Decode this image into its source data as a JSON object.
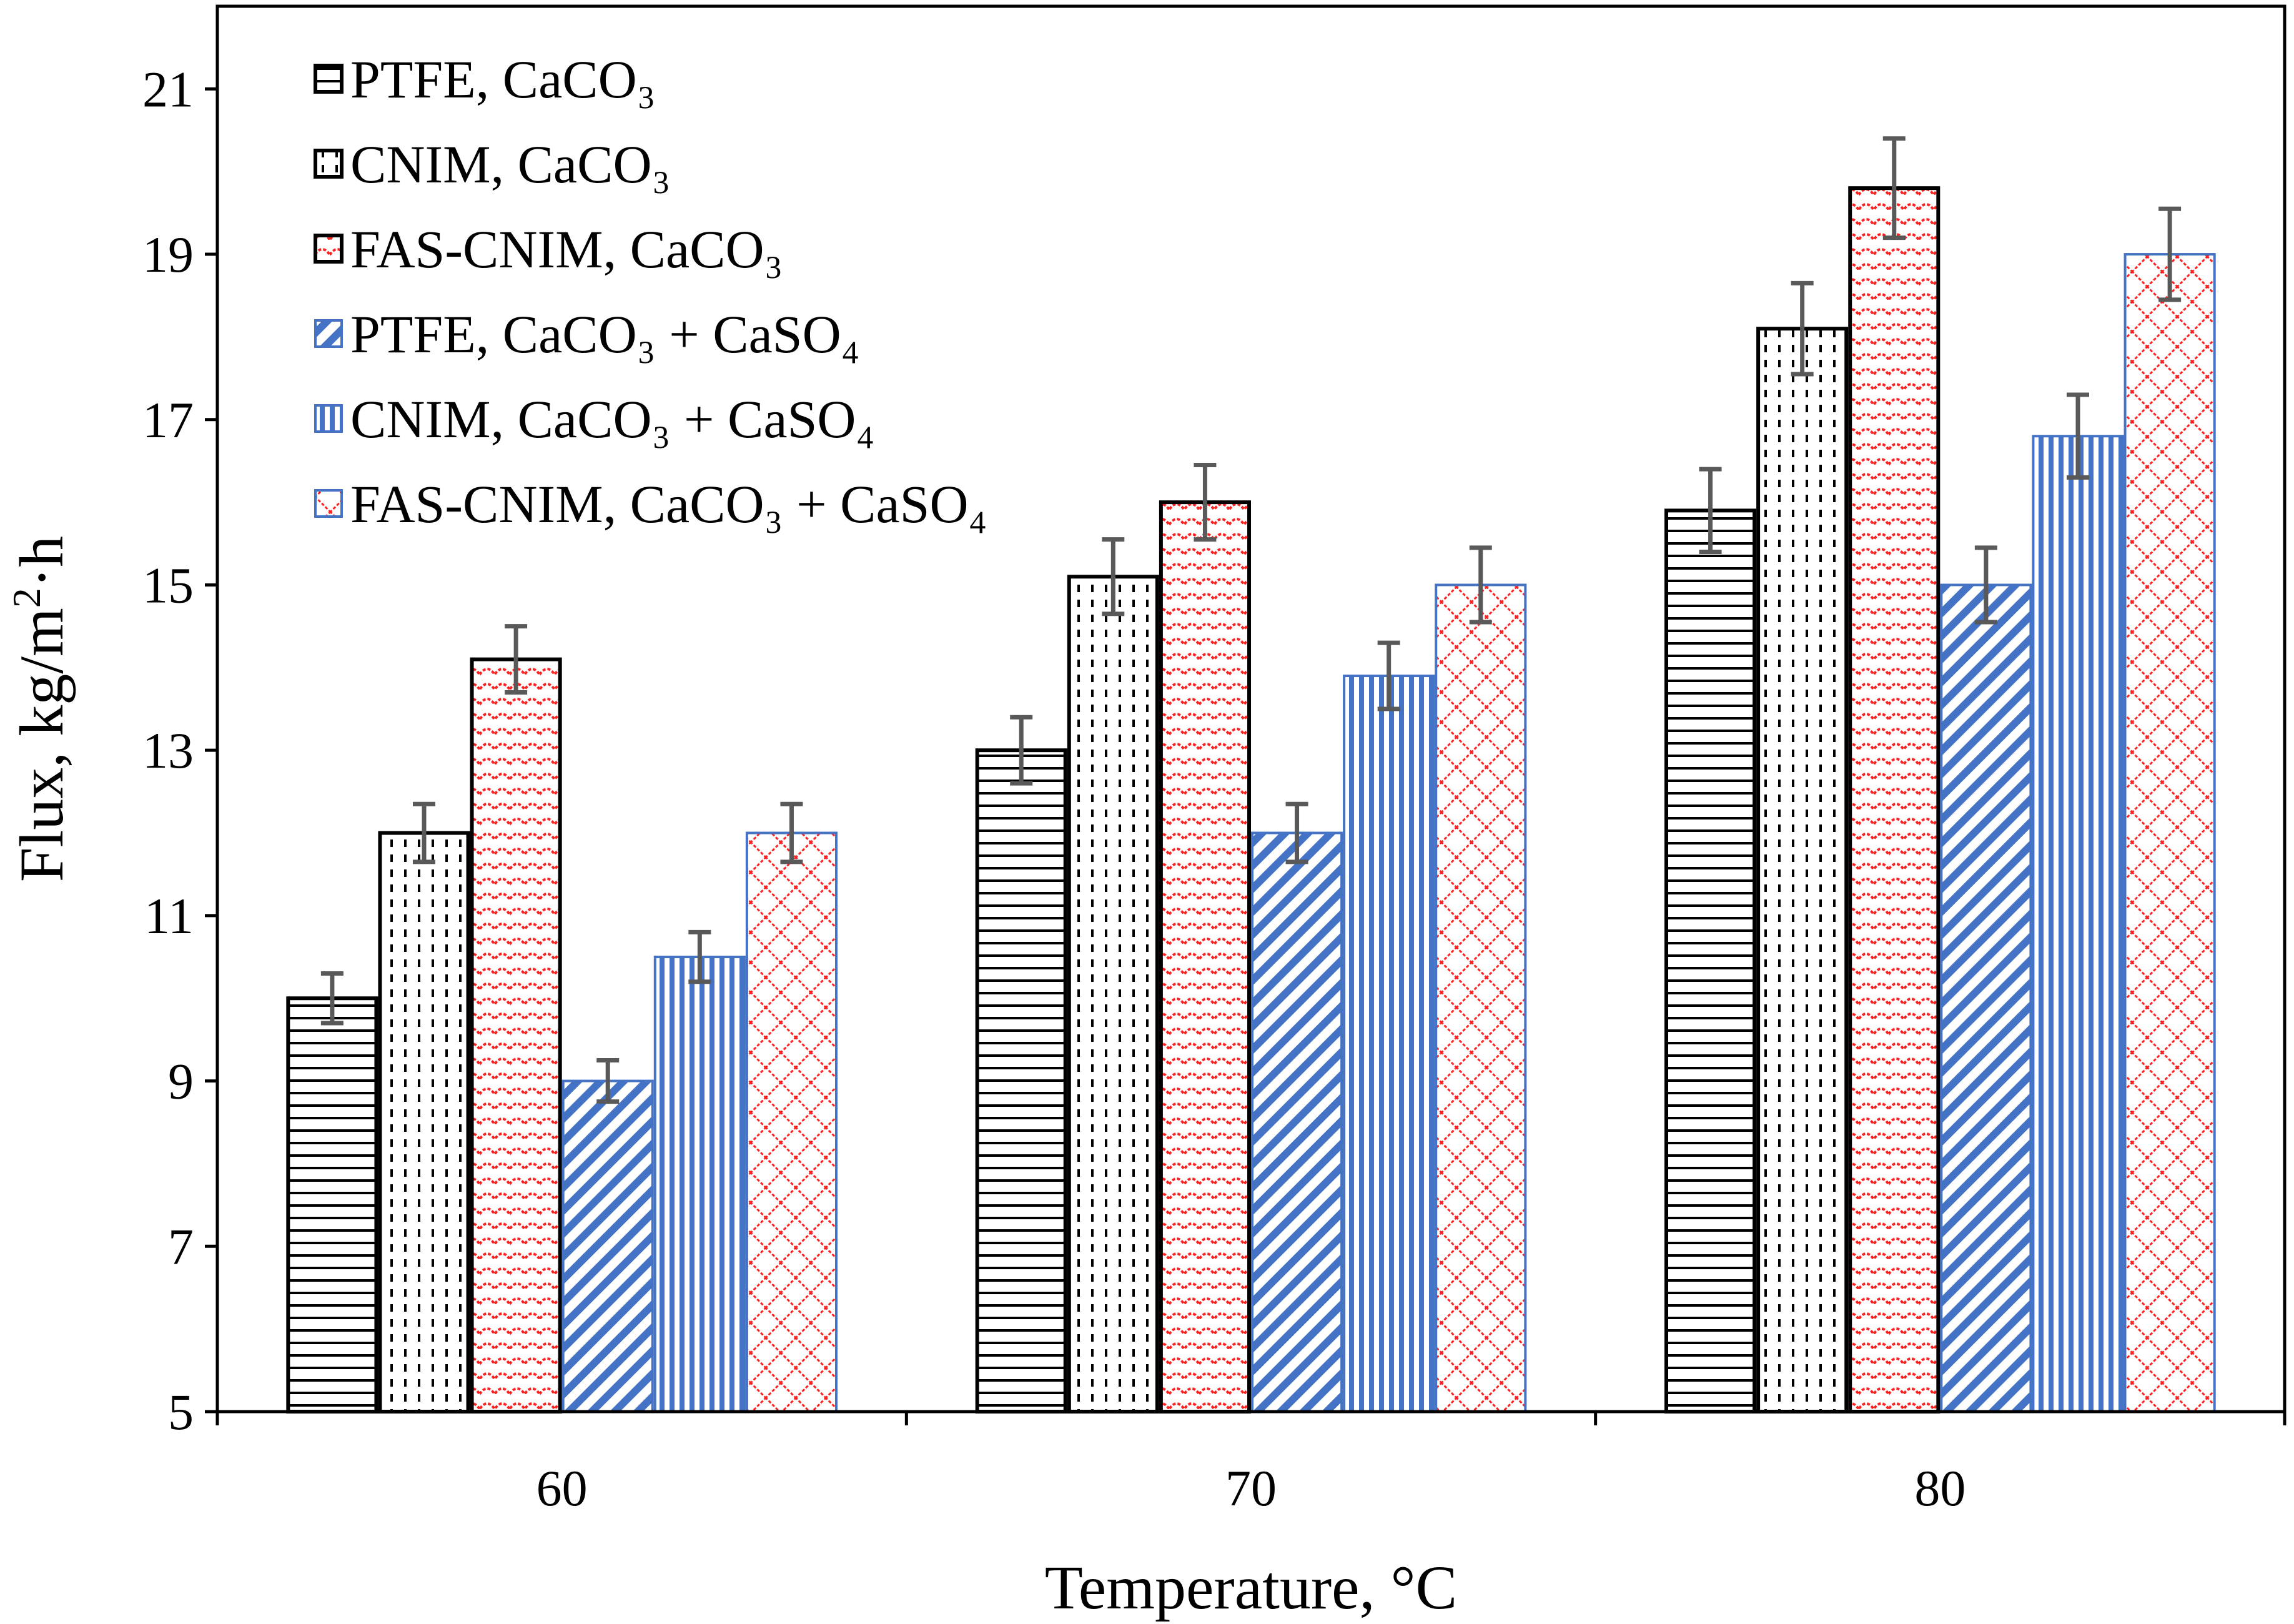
{
  "chart_data": {
    "type": "bar",
    "title": "",
    "xlabel": "Temperature, °C",
    "ylabel_main": "Flux, kg/m",
    "ylabel_sup": "2",
    "ylabel_tail": "·h",
    "categories": [
      "60",
      "70",
      "80"
    ],
    "ylim": [
      5,
      22
    ],
    "yticks": [
      5,
      7,
      9,
      11,
      13,
      15,
      17,
      19,
      21
    ],
    "legend_position": "top-left",
    "series": [
      {
        "name": "PTFE, CaCO₃",
        "values": [
          10.0,
          13.0,
          15.9
        ],
        "errors": [
          0.3,
          0.4,
          0.5
        ],
        "pattern": "horizontal-lines",
        "color": "#000000"
      },
      {
        "name": "CNIM, CaCO₃",
        "values": [
          12.0,
          15.1,
          18.1
        ],
        "errors": [
          0.35,
          0.45,
          0.55
        ],
        "pattern": "dashed-dots",
        "color": "#000000"
      },
      {
        "name": "FAS-CNIM, CaCO₃",
        "values": [
          14.1,
          16.0,
          19.8
        ],
        "errors": [
          0.4,
          0.45,
          0.6
        ],
        "pattern": "red-scales",
        "color": "#000000"
      },
      {
        "name": "PTFE, CaCO₃ + CaSO₄",
        "values": [
          9.0,
          12.0,
          15.0
        ],
        "errors": [
          0.25,
          0.35,
          0.45
        ],
        "pattern": "blue-diagonal",
        "color": "#4472C4"
      },
      {
        "name": "CNIM, CaCO₃ + CaSO₄",
        "values": [
          10.5,
          13.9,
          16.8
        ],
        "errors": [
          0.3,
          0.4,
          0.5
        ],
        "pattern": "blue-vertical",
        "color": "#4472C4"
      },
      {
        "name": "FAS-CNIM, CaCO₃ + CaSO₄",
        "values": [
          12.0,
          15.0,
          19.0
        ],
        "errors": [
          0.35,
          0.45,
          0.55
        ],
        "pattern": "red-crosshatch",
        "color": "#4472C4"
      }
    ],
    "errorbar_color": "#595959"
  }
}
